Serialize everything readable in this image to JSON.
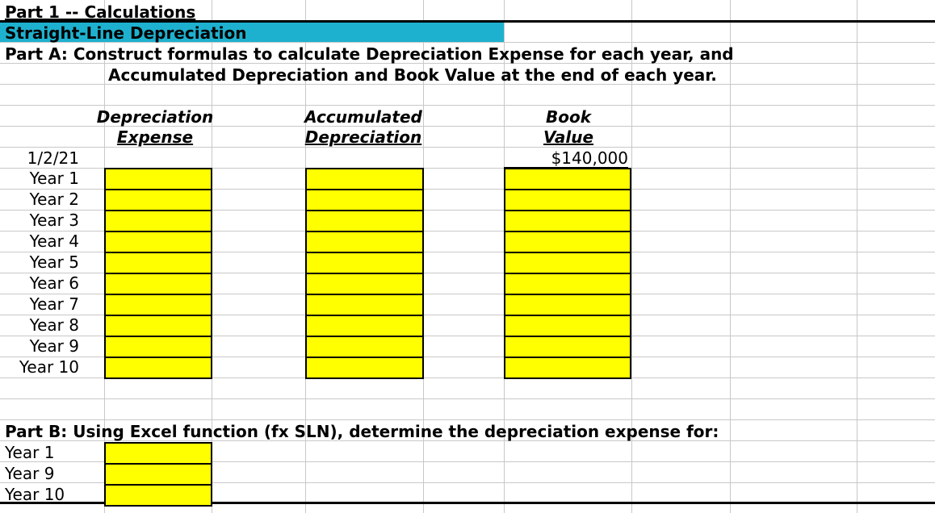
{
  "title": "Part 1 -- Calculations",
  "subtitle": "Straight-Line Depreciation",
  "partA": {
    "line1": "Part A: Construct formulas to calculate Depreciation Expense for each year, and",
    "line2": "Accumulated Depreciation and Book Value at the end of each year."
  },
  "headers": {
    "dep_line1": "Depreciation",
    "dep_line2": "Expense",
    "acc_line1": "Accumulated",
    "acc_line2": "Depreciation",
    "book_line1": "Book",
    "book_line2": "Value"
  },
  "initial": {
    "date": "1/2/21",
    "book_value": "$140,000"
  },
  "years": [
    "Year 1",
    "Year 2",
    "Year 3",
    "Year 4",
    "Year 5",
    "Year 6",
    "Year 7",
    "Year 8",
    "Year 9",
    "Year 10"
  ],
  "partB": {
    "label": "Part B: Using Excel function (fx SLN), determine the depreciation expense for:",
    "years": [
      "Year 1",
      "Year 9",
      "Year 10"
    ]
  },
  "colors": {
    "header_fill": "#1eb1cf",
    "input_fill": "#ffff00"
  }
}
